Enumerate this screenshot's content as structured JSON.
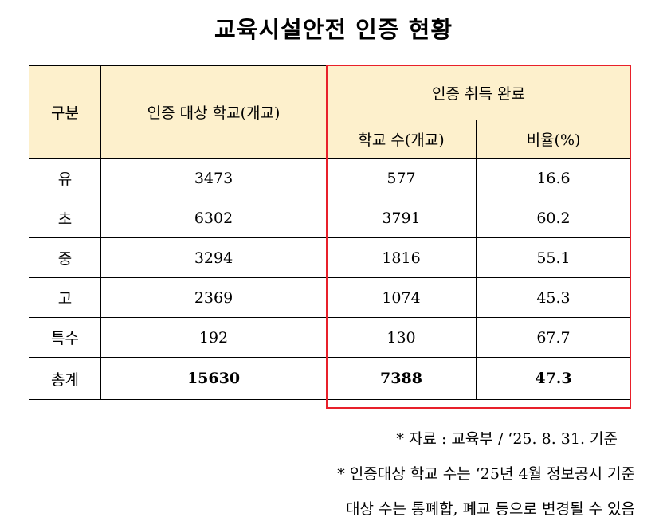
{
  "title": "교육시설안전 인증 현황",
  "colors": {
    "header_bg": "#fdf0cc",
    "highlight_border": "#e8202a",
    "grid": "#000000"
  },
  "table": {
    "header": {
      "category": "구분",
      "target_schools": "인증 대상 학교(개교)",
      "acquired_group": "인증 취득 완료",
      "school_count": "학교 수(개교)",
      "ratio": "비율(%)"
    },
    "rows": [
      {
        "category": "유",
        "target": "3473",
        "count": "577",
        "ratio": "16.6"
      },
      {
        "category": "초",
        "target": "6302",
        "count": "3791",
        "ratio": "60.2"
      },
      {
        "category": "중",
        "target": "3294",
        "count": "1816",
        "ratio": "55.1"
      },
      {
        "category": "고",
        "target": "2369",
        "count": "1074",
        "ratio": "45.3"
      },
      {
        "category": "특수",
        "target": "192",
        "count": "130",
        "ratio": "67.7"
      }
    ],
    "total": {
      "category": "총계",
      "target": "15630",
      "count": "7388",
      "ratio": "47.3"
    }
  },
  "notes": [
    "* 자료 : 교육부 /  ‘25. 8. 31. 기준",
    "* 인증대상 학교 수는  ‘25년 4월 정보공시 기준",
    "대상 수는 통폐합, 폐교 등으로 변경될 수 있음"
  ]
}
